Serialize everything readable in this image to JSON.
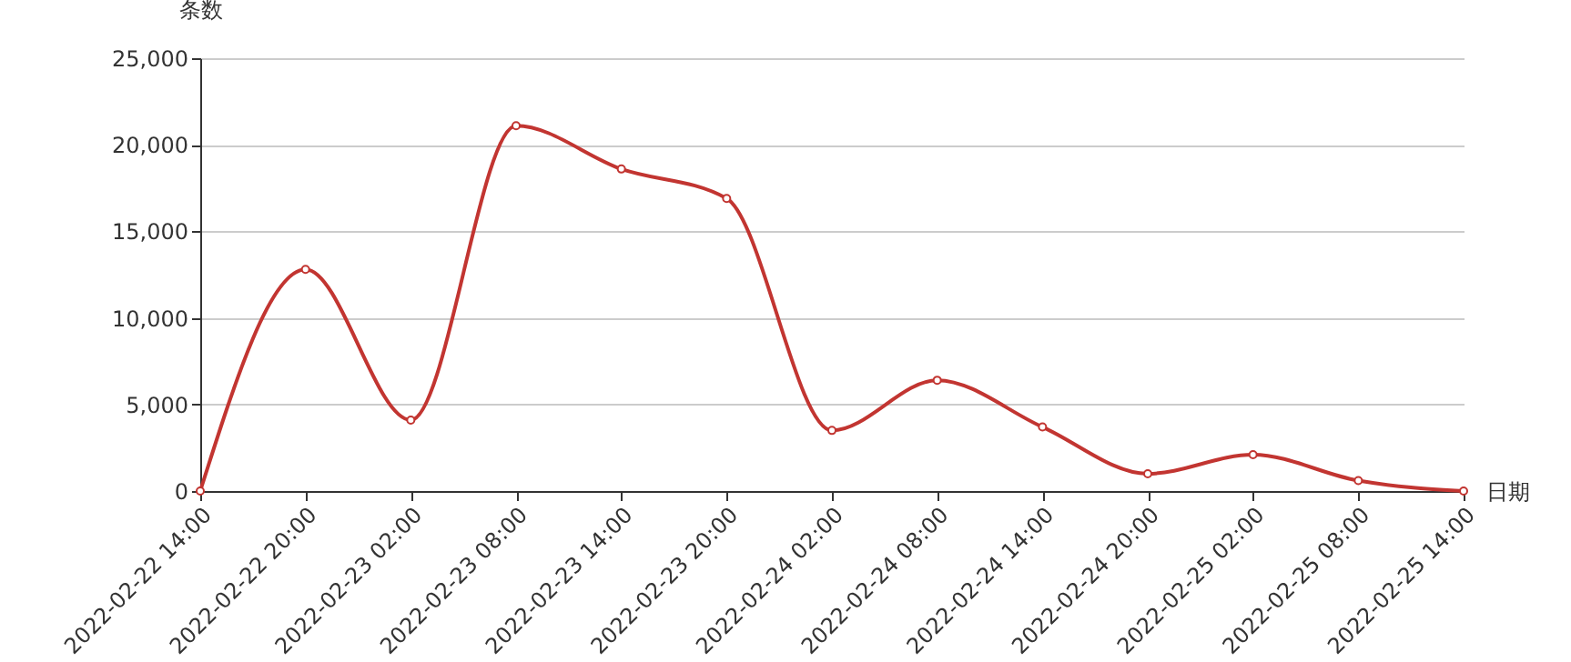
{
  "chart_data": {
    "type": "line",
    "xlabel": "日期",
    "ylabel": "条数",
    "categories": [
      "2022-02-22 14:00",
      "2022-02-22 20:00",
      "2022-02-23 02:00",
      "2022-02-23 08:00",
      "2022-02-23 14:00",
      "2022-02-23 20:00",
      "2022-02-24 02:00",
      "2022-02-24 08:00",
      "2022-02-24 14:00",
      "2022-02-24 20:00",
      "2022-02-25 02:00",
      "2022-02-25 08:00",
      "2022-02-25 14:00"
    ],
    "series": [
      {
        "color": "#c23531",
        "values": [
          0,
          12800,
          4100,
          21100,
          18600,
          16900,
          3500,
          6400,
          3700,
          1000,
          2100,
          600,
          0
        ]
      }
    ],
    "ylim": [
      0,
      25000
    ],
    "yticks": [
      0,
      {
        "value": 5000,
        "label": "5,000"
      },
      {
        "value": 10000,
        "label": "10,000"
      },
      {
        "value": 15000,
        "label": "15,000"
      },
      {
        "value": 20000,
        "label": "20,000"
      },
      {
        "value": 25000,
        "label": "25,000"
      }
    ],
    "grid": "y",
    "marker": "circle"
  }
}
